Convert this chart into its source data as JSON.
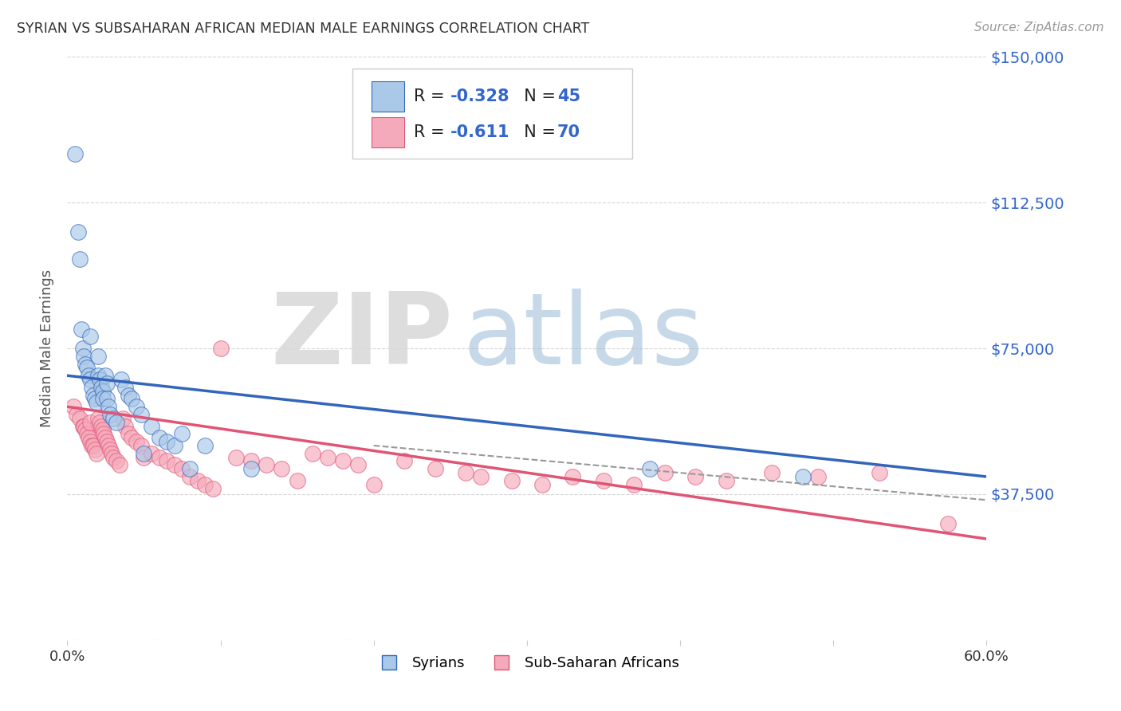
{
  "title": "SYRIAN VS SUBSAHARAN AFRICAN MEDIAN MALE EARNINGS CORRELATION CHART",
  "source": "Source: ZipAtlas.com",
  "ylabel": "Median Male Earnings",
  "ylim": [
    0,
    150000
  ],
  "xlim": [
    0.0,
    0.6
  ],
  "yticks": [
    0,
    37500,
    75000,
    112500,
    150000
  ],
  "ytick_labels": [
    "",
    "$37,500",
    "$75,000",
    "$112,500",
    "$150,000"
  ],
  "xticks": [
    0.0,
    0.1,
    0.2,
    0.3,
    0.4,
    0.5,
    0.6
  ],
  "xtick_labels": [
    "0.0%",
    "",
    "",
    "",
    "",
    "",
    "60.0%"
  ],
  "background_color": "#ffffff",
  "scatter_blue_color": "#aac8e8",
  "scatter_pink_color": "#f5aabb",
  "line_blue_color": "#3366bb",
  "line_pink_color": "#e05575",
  "axis_tick_color": "#3366cc",
  "grid_color": "#cccccc",
  "title_color": "#333333",
  "watermark_zip_color": "#d0d0d0",
  "watermark_atlas_color": "#88aacc",
  "blue_line_x0": 0.0,
  "blue_line_y0": 68000,
  "blue_line_x1": 0.6,
  "blue_line_y1": 42000,
  "pink_line_x0": 0.0,
  "pink_line_y0": 60000,
  "pink_line_x1": 0.6,
  "pink_line_y1": 26000,
  "dashed_line_x0": 0.2,
  "dashed_line_y0": 50000,
  "dashed_line_x1": 0.6,
  "dashed_line_y1": 36000,
  "syrians_x": [
    0.005,
    0.007,
    0.008,
    0.009,
    0.01,
    0.011,
    0.012,
    0.013,
    0.014,
    0.015,
    0.015,
    0.016,
    0.017,
    0.018,
    0.019,
    0.02,
    0.02,
    0.021,
    0.022,
    0.023,
    0.023,
    0.025,
    0.026,
    0.026,
    0.027,
    0.028,
    0.03,
    0.032,
    0.035,
    0.038,
    0.04,
    0.042,
    0.045,
    0.048,
    0.05,
    0.055,
    0.06,
    0.065,
    0.07,
    0.075,
    0.08,
    0.09,
    0.12,
    0.38,
    0.48
  ],
  "syrians_y": [
    125000,
    105000,
    98000,
    80000,
    75000,
    73000,
    71000,
    70000,
    68000,
    78000,
    67000,
    65000,
    63000,
    62000,
    61000,
    73000,
    68000,
    67000,
    65000,
    64000,
    62000,
    68000,
    66000,
    62000,
    60000,
    58000,
    57000,
    56000,
    67000,
    65000,
    63000,
    62000,
    60000,
    58000,
    48000,
    55000,
    52000,
    51000,
    50000,
    53000,
    44000,
    50000,
    44000,
    44000,
    42000
  ],
  "subsaharan_x": [
    0.004,
    0.006,
    0.008,
    0.01,
    0.011,
    0.012,
    0.013,
    0.014,
    0.015,
    0.015,
    0.016,
    0.017,
    0.018,
    0.019,
    0.02,
    0.021,
    0.022,
    0.023,
    0.024,
    0.025,
    0.026,
    0.027,
    0.028,
    0.029,
    0.03,
    0.032,
    0.034,
    0.036,
    0.038,
    0.04,
    0.042,
    0.045,
    0.048,
    0.05,
    0.055,
    0.06,
    0.065,
    0.07,
    0.075,
    0.08,
    0.085,
    0.09,
    0.095,
    0.1,
    0.11,
    0.12,
    0.13,
    0.14,
    0.15,
    0.16,
    0.17,
    0.18,
    0.19,
    0.2,
    0.22,
    0.24,
    0.26,
    0.27,
    0.29,
    0.31,
    0.33,
    0.35,
    0.37,
    0.39,
    0.41,
    0.43,
    0.46,
    0.49,
    0.53,
    0.575
  ],
  "subsaharan_y": [
    60000,
    58000,
    57000,
    55000,
    55000,
    54000,
    53000,
    52000,
    56000,
    51000,
    50000,
    50000,
    49000,
    48000,
    57000,
    56000,
    55000,
    54000,
    53000,
    52000,
    51000,
    50000,
    49000,
    48000,
    47000,
    46000,
    45000,
    57000,
    55000,
    53000,
    52000,
    51000,
    50000,
    47000,
    48000,
    47000,
    46000,
    45000,
    44000,
    42000,
    41000,
    40000,
    39000,
    75000,
    47000,
    46000,
    45000,
    44000,
    41000,
    48000,
    47000,
    46000,
    45000,
    40000,
    46000,
    44000,
    43000,
    42000,
    41000,
    40000,
    42000,
    41000,
    40000,
    43000,
    42000,
    41000,
    43000,
    42000,
    43000,
    30000
  ]
}
